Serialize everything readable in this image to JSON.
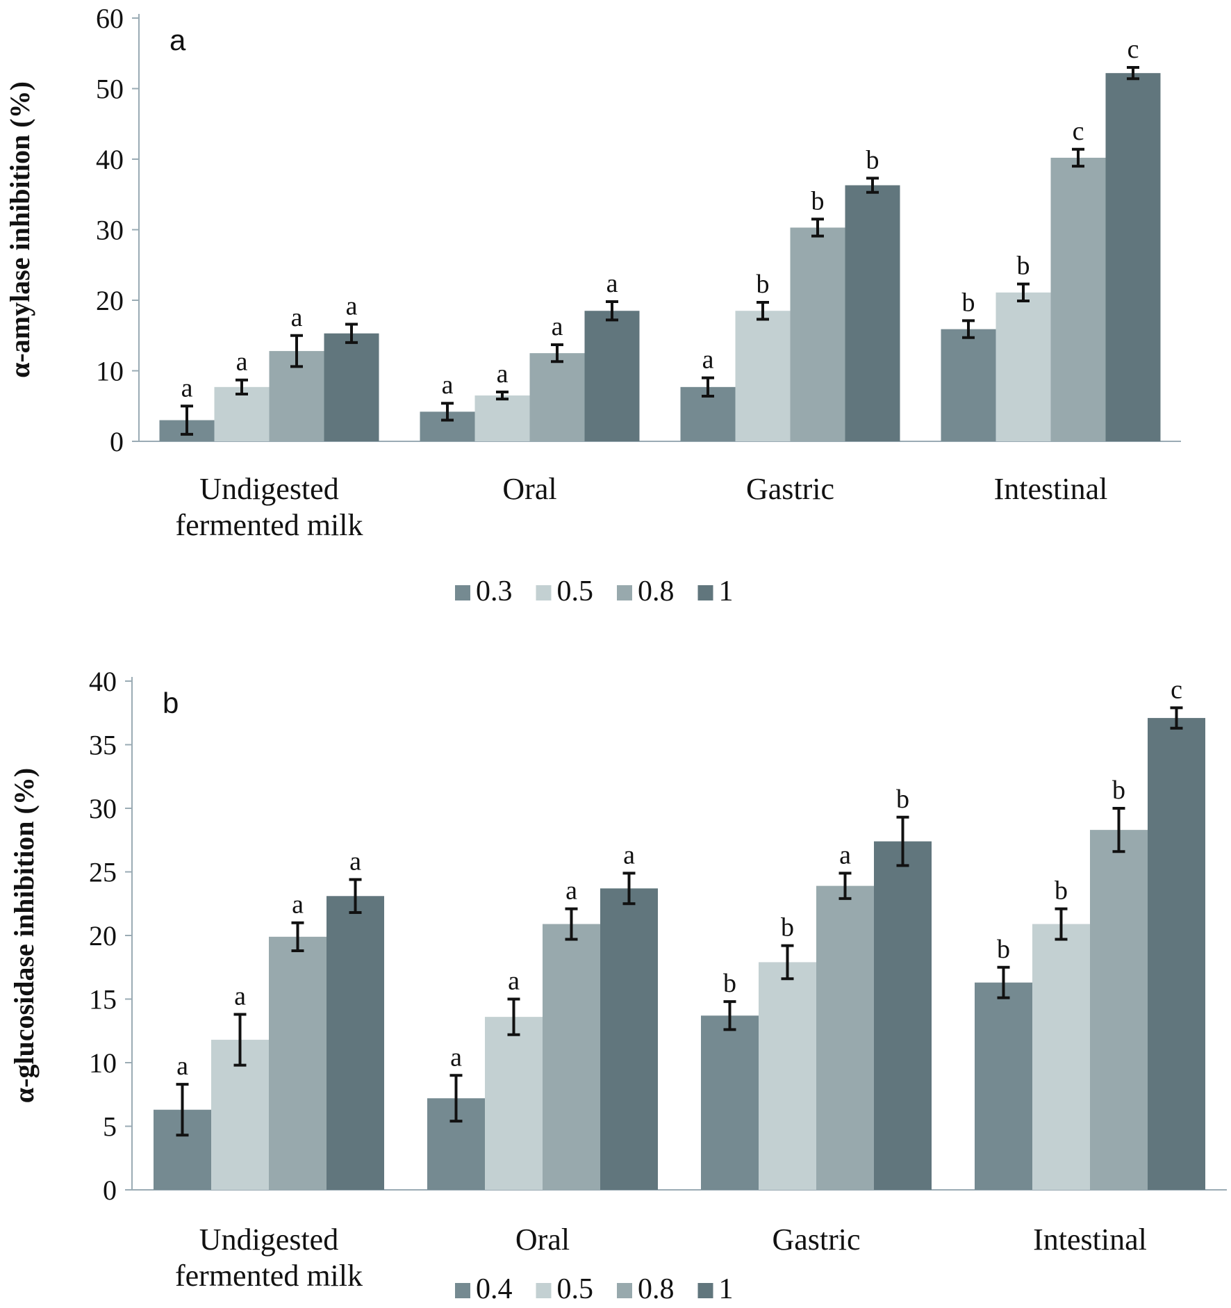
{
  "chart_data": [
    {
      "type": "bar",
      "panel_label": "a",
      "ylabel": "α-amylase inhibition (%)",
      "ylim": [
        0,
        60
      ],
      "yticks": [
        0,
        10,
        20,
        30,
        40,
        50,
        60
      ],
      "categories": [
        [
          "Undigested",
          "fermented milk"
        ],
        [
          "Oral"
        ],
        [
          "Gastric"
        ],
        [
          "Intestinal"
        ]
      ],
      "legend_position": "bottom",
      "grid": false,
      "series": [
        {
          "name": "0.3",
          "color": "#758a91",
          "values": [
            3,
            4.2,
            7.7,
            15.9
          ],
          "errors": [
            2.0,
            1.2,
            1.3,
            1.2
          ],
          "labels": [
            "a",
            "a",
            "a",
            "b"
          ]
        },
        {
          "name": "0.5",
          "color": "#c3d0d2",
          "values": [
            7.7,
            6.5,
            18.5,
            21.1
          ],
          "errors": [
            1.0,
            0.5,
            1.2,
            1.2
          ],
          "labels": [
            "a",
            "a",
            "b",
            "b"
          ]
        },
        {
          "name": "0.8",
          "color": "#98a9ad",
          "values": [
            12.8,
            12.5,
            30.3,
            40.2
          ],
          "errors": [
            2.2,
            1.2,
            1.2,
            1.2
          ],
          "labels": [
            "a",
            "a",
            "b",
            "c"
          ]
        },
        {
          "name": "1",
          "color": "#61767d",
          "values": [
            15.3,
            18.5,
            36.3,
            52.2
          ],
          "errors": [
            1.3,
            1.3,
            1.0,
            0.8
          ],
          "labels": [
            "a",
            "a",
            "b",
            "c"
          ]
        }
      ]
    },
    {
      "type": "bar",
      "panel_label": "b",
      "ylabel": "α-glucosidase inhibition (%)",
      "ylim": [
        0,
        40
      ],
      "yticks": [
        0,
        5,
        10,
        15,
        20,
        25,
        30,
        35,
        40
      ],
      "categories": [
        [
          "Undigested",
          "fermented milk"
        ],
        [
          "Oral"
        ],
        [
          "Gastric"
        ],
        [
          "Intestinal"
        ]
      ],
      "legend_position": "bottom",
      "grid": false,
      "series": [
        {
          "name": "0.4",
          "color": "#758a91",
          "values": [
            6.3,
            7.2,
            13.7,
            16.3
          ],
          "errors": [
            2.0,
            1.8,
            1.1,
            1.2
          ],
          "labels": [
            "a",
            "a",
            "b",
            "b"
          ]
        },
        {
          "name": "0.5",
          "color": "#c3d0d2",
          "values": [
            11.8,
            13.6,
            17.9,
            20.9
          ],
          "errors": [
            2.0,
            1.4,
            1.3,
            1.2
          ],
          "labels": [
            "a",
            "a",
            "b",
            "b"
          ]
        },
        {
          "name": "0.8",
          "color": "#98a9ad",
          "values": [
            19.9,
            20.9,
            23.9,
            28.3
          ],
          "errors": [
            1.1,
            1.2,
            1.0,
            1.7
          ],
          "labels": [
            "a",
            "a",
            "a",
            "b"
          ]
        },
        {
          "name": "1",
          "color": "#61767d",
          "values": [
            23.1,
            23.7,
            27.4,
            37.1
          ],
          "errors": [
            1.3,
            1.2,
            1.9,
            0.8
          ],
          "labels": [
            "a",
            "a",
            "b",
            "c"
          ]
        }
      ]
    }
  ]
}
